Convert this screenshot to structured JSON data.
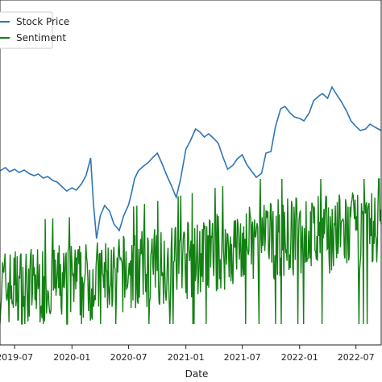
{
  "chart_data": {
    "type": "line",
    "xlabel": "Date",
    "x_ticks": [
      "2019-07",
      "2020-01",
      "2020-07",
      "2021-01",
      "2021-07",
      "2022-01",
      "2022-07"
    ],
    "legend": {
      "placement": "top-left",
      "entries": [
        "Stock Price",
        "Sentiment"
      ]
    },
    "grid": false,
    "x_range": [
      "2019-05-15",
      "2022-09-20"
    ],
    "series": [
      {
        "name": "Stock Price",
        "color": "#2e75b6",
        "points": [
          [
            "2019-05-15",
            212
          ],
          [
            "2019-06-01",
            208
          ],
          [
            "2019-06-15",
            213
          ],
          [
            "2019-07-01",
            210
          ],
          [
            "2019-07-15",
            214
          ],
          [
            "2019-08-01",
            211
          ],
          [
            "2019-08-15",
            215
          ],
          [
            "2019-09-01",
            218
          ],
          [
            "2019-09-15",
            216
          ],
          [
            "2019-10-01",
            221
          ],
          [
            "2019-10-15",
            219
          ],
          [
            "2019-11-01",
            224
          ],
          [
            "2019-11-15",
            226
          ],
          [
            "2019-12-01",
            232
          ],
          [
            "2019-12-15",
            237
          ],
          [
            "2020-01-01",
            233
          ],
          [
            "2020-01-15",
            236
          ],
          [
            "2020-02-01",
            228
          ],
          [
            "2020-02-15",
            218
          ],
          [
            "2020-03-01",
            196
          ],
          [
            "2020-03-10",
            252
          ],
          [
            "2020-03-20",
            296
          ],
          [
            "2020-04-01",
            268
          ],
          [
            "2020-04-15",
            255
          ],
          [
            "2020-05-01",
            262
          ],
          [
            "2020-05-15",
            278
          ],
          [
            "2020-06-01",
            286
          ],
          [
            "2020-06-15",
            268
          ],
          [
            "2020-07-01",
            254
          ],
          [
            "2020-07-10",
            240
          ],
          [
            "2020-07-20",
            222
          ],
          [
            "2020-08-01",
            212
          ],
          [
            "2020-08-15",
            207
          ],
          [
            "2020-09-01",
            202
          ],
          [
            "2020-09-15",
            196
          ],
          [
            "2020-10-01",
            190
          ],
          [
            "2020-10-15",
            202
          ],
          [
            "2020-11-01",
            218
          ],
          [
            "2020-11-15",
            230
          ],
          [
            "2020-12-01",
            245
          ],
          [
            "2020-12-15",
            222
          ],
          [
            "2021-01-01",
            185
          ],
          [
            "2021-01-15",
            175
          ],
          [
            "2021-02-01",
            160
          ],
          [
            "2021-02-15",
            164
          ],
          [
            "2021-03-01",
            170
          ],
          [
            "2021-03-15",
            166
          ],
          [
            "2021-04-01",
            172
          ],
          [
            "2021-04-15",
            178
          ],
          [
            "2021-05-01",
            196
          ],
          [
            "2021-05-15",
            210
          ],
          [
            "2021-06-01",
            205
          ],
          [
            "2021-06-15",
            197
          ],
          [
            "2021-07-01",
            192
          ],
          [
            "2021-07-15",
            204
          ],
          [
            "2021-08-01",
            213
          ],
          [
            "2021-08-15",
            220
          ],
          [
            "2021-09-01",
            215
          ],
          [
            "2021-09-15",
            190
          ],
          [
            "2021-10-01",
            188
          ],
          [
            "2021-10-15",
            158
          ],
          [
            "2021-11-01",
            135
          ],
          [
            "2021-11-15",
            132
          ],
          [
            "2021-12-01",
            140
          ],
          [
            "2021-12-15",
            145
          ],
          [
            "2022-01-01",
            147
          ],
          [
            "2022-01-15",
            150
          ],
          [
            "2022-02-01",
            140
          ],
          [
            "2022-02-15",
            125
          ],
          [
            "2022-03-01",
            120
          ],
          [
            "2022-03-15",
            116
          ],
          [
            "2022-04-01",
            122
          ],
          [
            "2022-04-15",
            108
          ],
          [
            "2022-05-01",
            118
          ],
          [
            "2022-05-15",
            126
          ],
          [
            "2022-06-01",
            138
          ],
          [
            "2022-06-15",
            150
          ],
          [
            "2022-07-01",
            157
          ],
          [
            "2022-07-15",
            162
          ],
          [
            "2022-08-01",
            160
          ],
          [
            "2022-08-15",
            154
          ],
          [
            "2022-09-01",
            158
          ],
          [
            "2022-09-20",
            162
          ]
        ]
      },
      {
        "name": "Sentiment",
        "color": "#138013",
        "start": "2019-05-15",
        "end": "2022-09-20",
        "baseline": 0,
        "trend": [
          [
            0,
            0.25
          ],
          [
            0.25,
            0.3
          ],
          [
            0.5,
            0.45
          ],
          [
            0.75,
            0.6
          ],
          [
            1,
            0.65
          ]
        ],
        "samples": 600
      }
    ]
  }
}
